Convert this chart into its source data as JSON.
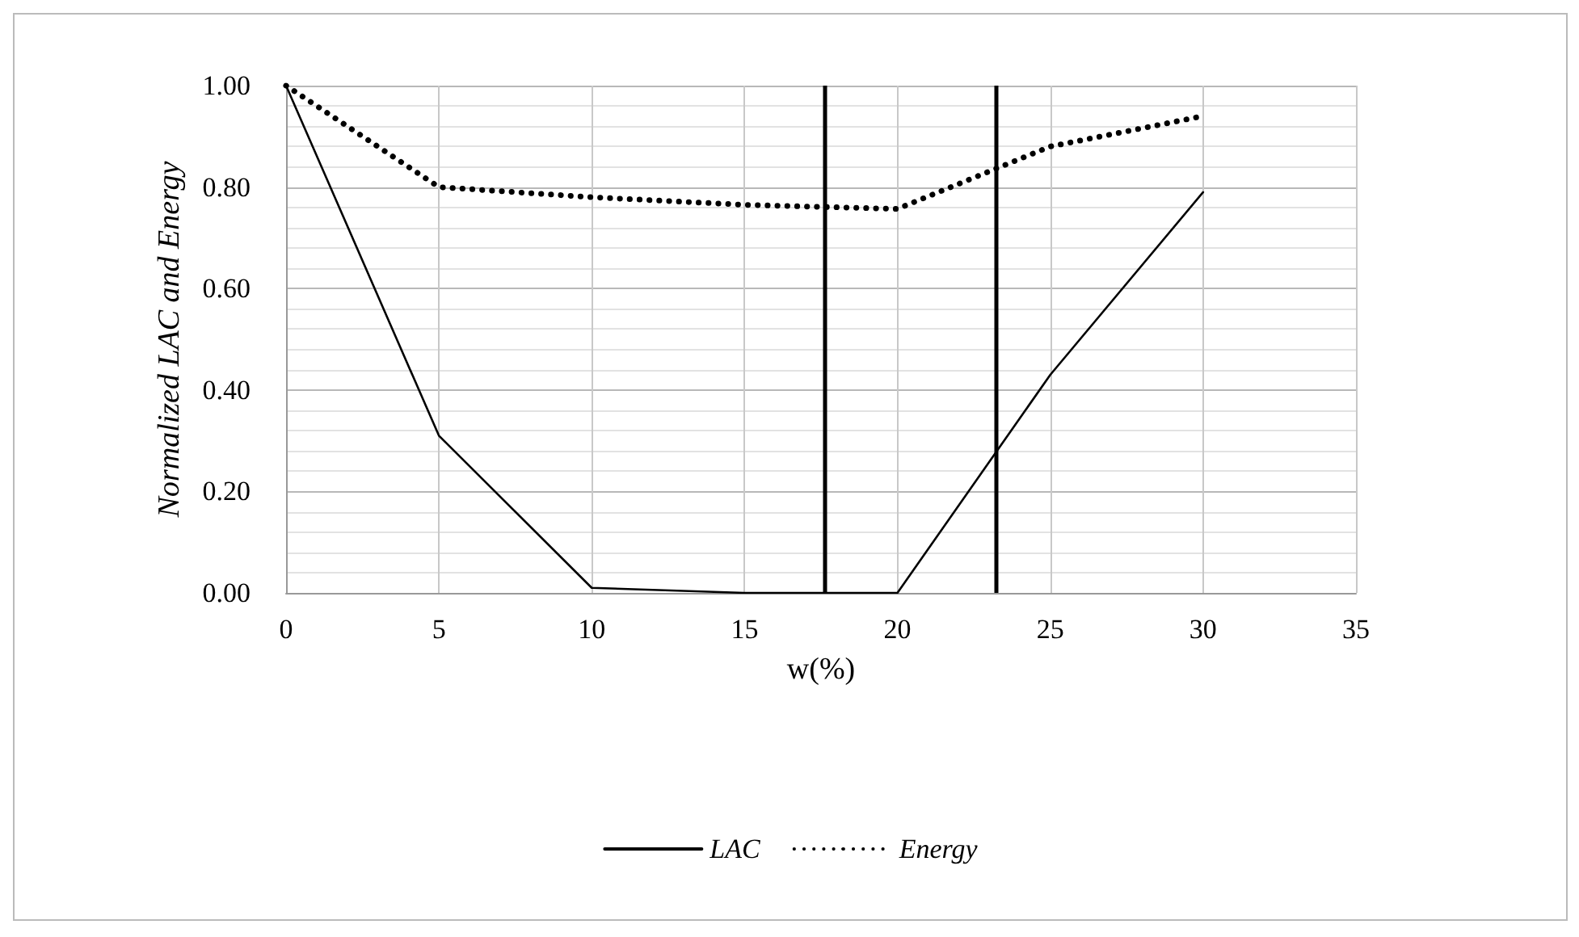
{
  "chart_data": {
    "type": "line",
    "xlabel": "w(%)",
    "ylabel": "Normalized LAC and Energy",
    "x": [
      0,
      5,
      10,
      15,
      20,
      25,
      30
    ],
    "series": [
      {
        "name": "LAC",
        "color": "#000000",
        "line_style": "solid",
        "values": [
          1.0,
          0.31,
          0.01,
          0.0,
          0.0,
          0.43,
          0.79
        ]
      },
      {
        "name": "Energy",
        "color": "#000000",
        "line_style": "dotted",
        "values": [
          1.0,
          0.8,
          0.78,
          0.765,
          0.757,
          0.88,
          0.94
        ]
      }
    ],
    "xlim": [
      0,
      35
    ],
    "xticks": [
      0,
      5,
      10,
      15,
      20,
      25,
      30,
      35
    ],
    "ylim": [
      0,
      1
    ],
    "yticks": [
      {
        "value": 0,
        "label": "0.00"
      },
      {
        "value": 0.2,
        "label": "0.20"
      },
      {
        "value": 0.4,
        "label": "0.40"
      },
      {
        "value": 0.6,
        "label": "0.60"
      },
      {
        "value": 0.8,
        "label": "0.80"
      },
      {
        "value": 1,
        "label": "1.00"
      }
    ],
    "ref_lines": [
      {
        "axis": "x",
        "value": 17.6,
        "color": "#000000"
      },
      {
        "axis": "x",
        "value": 23.2,
        "color": "#000000"
      }
    ],
    "grid": true,
    "legend": "bottom",
    "marker": "none"
  }
}
